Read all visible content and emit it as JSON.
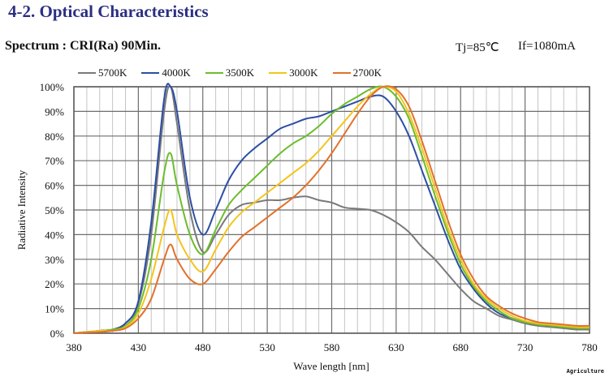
{
  "page": {
    "title": "4-2. Optical Characteristics",
    "subtitle": "Spectrum : CRI(Ra) 90Min.",
    "tj": "Tj=85℃",
    "if": "If=1080mA",
    "watermark": "Agriculture"
  },
  "chart_data": {
    "type": "line",
    "title": "",
    "xlabel": "Wave length [nm]",
    "ylabel": "Radiative Intensity",
    "xlim": [
      380,
      780
    ],
    "ylim": [
      0,
      100
    ],
    "x_ticks": [
      "380",
      "430",
      "480",
      "530",
      "580",
      "630",
      "680",
      "730",
      "780"
    ],
    "y_ticks": [
      "0%",
      "10%",
      "20%",
      "30%",
      "40%",
      "50%",
      "60%",
      "70%",
      "80%",
      "90%",
      "100%"
    ],
    "grid": true,
    "legend_position": "top",
    "x": [
      380,
      390,
      400,
      410,
      420,
      430,
      440,
      450,
      455,
      460,
      470,
      480,
      490,
      500,
      510,
      520,
      530,
      540,
      550,
      560,
      570,
      580,
      590,
      600,
      610,
      620,
      630,
      640,
      650,
      660,
      670,
      680,
      690,
      700,
      710,
      720,
      730,
      740,
      750,
      760,
      770,
      780
    ],
    "series": [
      {
        "name": "5700K",
        "color": "#7a7a7a",
        "values": [
          0,
          0.5,
          1,
          1.5,
          4,
          12,
          40,
          90,
          100,
          85,
          50,
          33,
          40,
          48,
          52,
          53,
          54,
          54,
          55,
          55.5,
          54,
          53,
          51,
          50.5,
          50,
          48,
          45,
          41,
          35,
          30,
          24,
          18,
          13,
          10,
          7,
          5.5,
          4,
          3,
          2.5,
          2,
          1.5,
          1.5
        ]
      },
      {
        "name": "4000K",
        "color": "#2d4ea3",
        "values": [
          0,
          0.5,
          1,
          1.5,
          4,
          13,
          45,
          95,
          100,
          90,
          55,
          40,
          50,
          62,
          70,
          75,
          79,
          83,
          85,
          87,
          88,
          90,
          92,
          94,
          96,
          96,
          90,
          80,
          66,
          52,
          38,
          26,
          18,
          12,
          8,
          6,
          4.5,
          3.5,
          3,
          2.5,
          2,
          2
        ]
      },
      {
        "name": "3500K",
        "color": "#6cbd2c",
        "values": [
          0,
          0.5,
          1,
          1.5,
          3,
          10,
          30,
          65,
          73,
          60,
          40,
          32,
          42,
          52,
          58,
          63,
          68,
          73,
          77,
          80,
          84,
          89,
          93,
          96,
          99,
          100,
          96,
          87,
          72,
          56,
          41,
          28,
          19,
          13,
          9,
          6,
          4.5,
          3.5,
          3,
          2.5,
          2,
          2
        ]
      },
      {
        "name": "3000K",
        "color": "#f4c41c",
        "values": [
          0,
          0.5,
          1,
          1,
          2.5,
          8,
          22,
          43,
          50,
          40,
          30,
          25,
          34,
          43,
          49,
          53,
          57,
          61,
          65,
          69,
          74,
          80,
          86,
          92,
          97,
          100,
          98,
          89,
          75,
          59,
          43,
          30,
          20,
          14,
          10,
          7,
          5,
          4,
          3.5,
          3,
          2.5,
          2.5
        ]
      },
      {
        "name": "2700K",
        "color": "#e2712a",
        "values": [
          0,
          0.3,
          0.5,
          1,
          2,
          6,
          14,
          30,
          36,
          30,
          22,
          20,
          26,
          33,
          39,
          43,
          47,
          51,
          55,
          60,
          66,
          73,
          81,
          89,
          96,
          100,
          99,
          92,
          78,
          62,
          46,
          32,
          22,
          15,
          11,
          8,
          6,
          4.5,
          4,
          3.5,
          3,
          3
        ]
      }
    ]
  }
}
